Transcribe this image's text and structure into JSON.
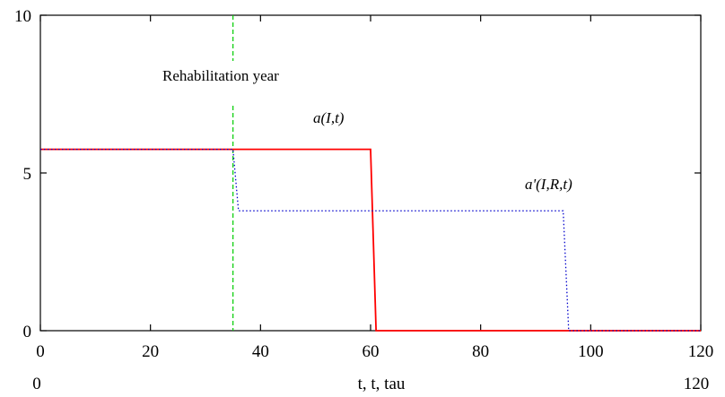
{
  "chart_data": {
    "type": "line",
    "xlim": [
      0,
      120
    ],
    "ylim": [
      0,
      10
    ],
    "x_ticks": [
      "0",
      "20",
      "40",
      "60",
      "80",
      "100",
      "120"
    ],
    "y_ticks": [
      "0",
      "5",
      "10"
    ],
    "xlabel": "t, t, tau",
    "x_range_left": "0",
    "x_range_right": "120",
    "grid": false,
    "series": [
      {
        "name": "a(I,t)",
        "color": "#ff0000",
        "style": "solid",
        "x": [
          0,
          60,
          61,
          120
        ],
        "y": [
          5.75,
          5.75,
          0,
          0
        ]
      },
      {
        "name": "a'(I,R,t)",
        "color": "#0000cc",
        "style": "dotted",
        "x": [
          0,
          35,
          36,
          95,
          96,
          120
        ],
        "y": [
          5.75,
          5.75,
          3.8,
          3.8,
          0,
          0
        ]
      }
    ],
    "vline": {
      "x": 35,
      "color": "#00cc00",
      "style": "dashed",
      "label": "Rehabilitation year"
    },
    "annotations": {
      "a_label_main": "a",
      "a_label_args": "(I,t)",
      "ap_label_main": "a'",
      "ap_label_args": "(I,R,t)"
    }
  }
}
